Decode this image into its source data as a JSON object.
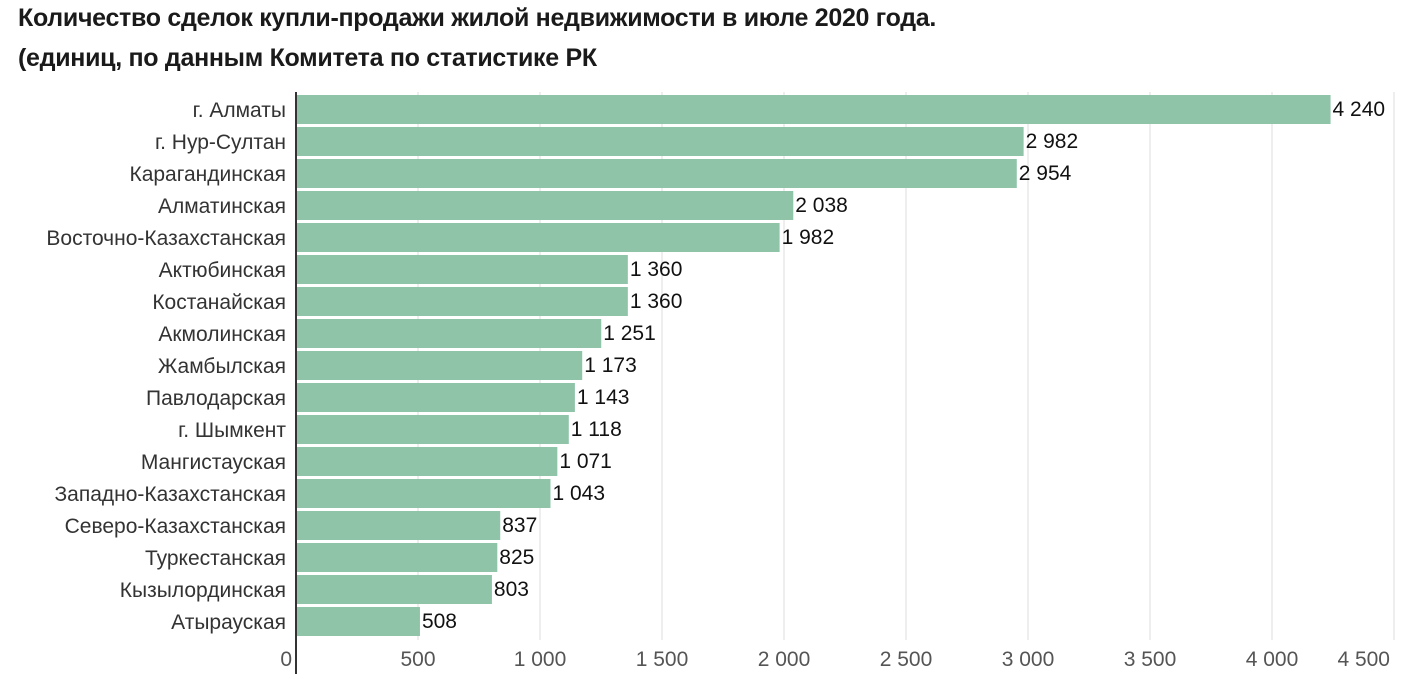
{
  "chart_data": {
    "type": "bar",
    "orientation": "horizontal",
    "title": "Количество сделок купли-продажи жилой недвижимости в июле 2020 года.",
    "subtitle": "(единиц, по данным Комитета по статистике РК",
    "categories": [
      "г. Алматы",
      "г. Нур-Султан",
      "Карагандинская",
      "Алматинская",
      "Восточно-Казахстанская",
      "Актюбинская",
      "Костанайская",
      "Акмолинская",
      "Жамбылская",
      "Павлодарская",
      "г. Шымкент",
      "Мангистауская",
      "Западно-Казахстанская",
      "Северо-Казахстанская",
      "Туркестанская",
      "Кызылординская",
      "Атырауская"
    ],
    "values": [
      4240,
      2982,
      2954,
      2038,
      1982,
      1360,
      1360,
      1251,
      1173,
      1143,
      1118,
      1071,
      1043,
      837,
      825,
      803,
      508
    ],
    "value_labels": [
      "4 240",
      "2 982",
      "2 954",
      "2 038",
      "1 982",
      "1 360",
      "1 360",
      "1 251",
      "1 173",
      "1 143",
      "1 118",
      "1 071",
      "1 043",
      "837",
      "825",
      "803",
      "508"
    ],
    "xticks": [
      0,
      500,
      1000,
      1500,
      2000,
      2500,
      3000,
      3500,
      4000,
      4500
    ],
    "xtick_labels": [
      "0",
      "500",
      "1 000",
      "1 500",
      "2 000",
      "2 500",
      "3 000",
      "3 500",
      "4 000",
      "4 500"
    ],
    "xlim": [
      0,
      4500
    ],
    "xlabel": "",
    "ylabel": "",
    "grid": "vertical",
    "legend": "none",
    "bar_color": "#8fc4a8",
    "grid_color": "#dddddd",
    "axis_color": "#333333"
  }
}
